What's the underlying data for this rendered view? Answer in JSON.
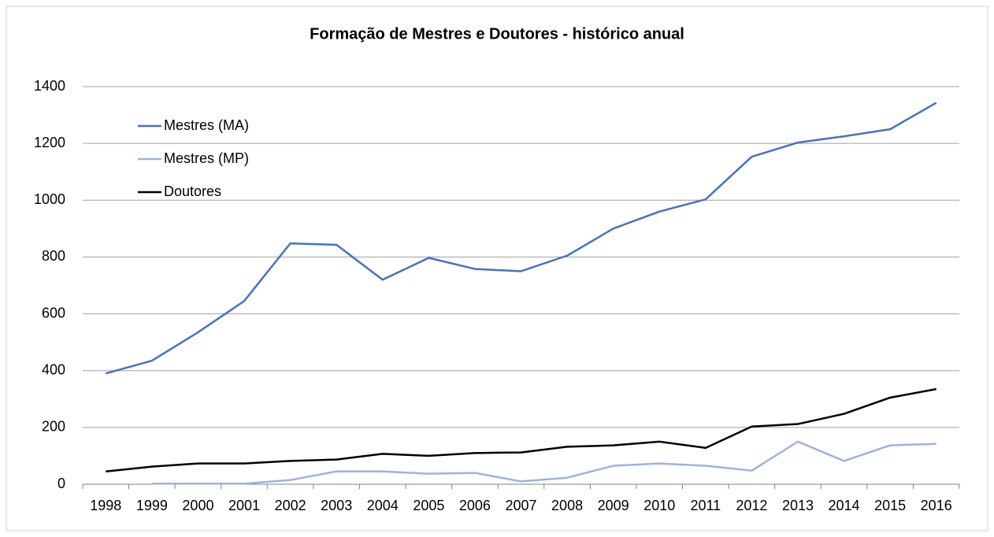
{
  "chart_data": {
    "type": "line",
    "title": "Formação de Mestres e Doutores - histórico anual",
    "categories": [
      "1998",
      "1999",
      "2000",
      "2001",
      "2002",
      "2003",
      "2004",
      "2005",
      "2006",
      "2007",
      "2008",
      "2009",
      "2010",
      "2011",
      "2012",
      "2013",
      "2014",
      "2015",
      "2016"
    ],
    "series": [
      {
        "name": "Mestres (MA)",
        "color": "#4472c4",
        "values": [
          390,
          435,
          535,
          645,
          848,
          843,
          720,
          797,
          758,
          750,
          805,
          900,
          960,
          1003,
          1153,
          1203,
          1225,
          1250,
          1343
        ]
      },
      {
        "name": "Mestres (MP)",
        "color": "#9db3e0",
        "values": [
          null,
          2,
          2,
          2,
          15,
          45,
          45,
          37,
          40,
          10,
          23,
          65,
          73,
          65,
          48,
          150,
          82,
          137,
          142
        ]
      },
      {
        "name": "Doutores",
        "color": "#000000",
        "values": [
          45,
          62,
          73,
          73,
          82,
          87,
          107,
          100,
          110,
          112,
          132,
          137,
          150,
          128,
          203,
          212,
          248,
          305,
          335
        ]
      }
    ],
    "ylim": [
      0,
      1400
    ],
    "yticks": [
      0,
      200,
      400,
      600,
      800,
      1000,
      1200,
      1400
    ],
    "grid": true,
    "legend": "upper-left"
  }
}
